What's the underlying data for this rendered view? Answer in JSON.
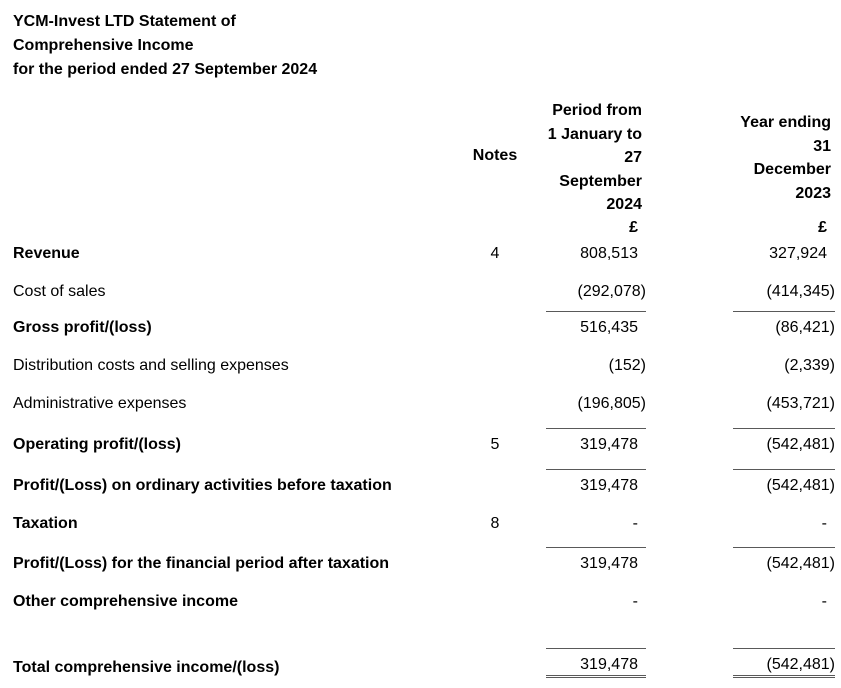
{
  "title": {
    "text": "YCM-Invest LTD Statement of\nComprehensive Income\nfor the period ended 27 September 2024"
  },
  "columns": {
    "notes": "Notes",
    "period_2024": "Period from\n1 January to\n27\nSeptember\n2024",
    "period_2023": "Year ending\n31\nDecember\n2023",
    "currency_2024": "£",
    "currency_2023": "£"
  },
  "colors": {
    "text": "#000000",
    "rule": "#595959",
    "background": "#ffffff"
  },
  "rows": [
    {
      "label": "Revenue",
      "note": "4",
      "v2024": "808,513",
      "v2023": "327,924",
      "bold": true,
      "rule_above": false,
      "double_rule_below": false
    },
    {
      "label": "Cost of sales",
      "note": "",
      "v2024": "(292,078)",
      "v2023": "(414,345)",
      "bold": false,
      "rule_above": false,
      "double_rule_below": false
    },
    {
      "label": "Gross profit/(loss)",
      "note": "",
      "v2024": "516,435",
      "v2023": "(86,421)",
      "bold": true,
      "rule_above": true,
      "double_rule_below": false
    },
    {
      "label": "Distribution costs and selling expenses",
      "note": "",
      "v2024": "(152)",
      "v2023": "(2,339)",
      "bold": false,
      "rule_above": false,
      "double_rule_below": false
    },
    {
      "label": "Administrative expenses",
      "note": "",
      "v2024": "(196,805)",
      "v2023": "(453,721)",
      "bold": false,
      "rule_above": false,
      "double_rule_below": false
    },
    {
      "label": "Operating profit/(loss)",
      "note": "5",
      "v2024": "319,478",
      "v2023": "(542,481)",
      "bold": true,
      "rule_above": true,
      "double_rule_below": false
    },
    {
      "label": "Profit/(Loss) on ordinary activities before taxation",
      "note": "",
      "v2024": "319,478",
      "v2023": "(542,481)",
      "bold": true,
      "rule_above": true,
      "double_rule_below": false
    },
    {
      "label": "Taxation",
      "note": "8",
      "v2024": "-",
      "v2023": "-",
      "bold": true,
      "rule_above": false,
      "double_rule_below": false
    },
    {
      "label": "Profit/(Loss) for the financial period after taxation",
      "note": "",
      "v2024": "319,478",
      "v2023": "(542,481)",
      "bold": true,
      "rule_above": true,
      "double_rule_below": false
    },
    {
      "label": "Other comprehensive income",
      "note": "",
      "v2024": "-",
      "v2023": "-",
      "bold": true,
      "rule_above": false,
      "double_rule_below": false
    },
    {
      "label": "Total comprehensive income/(loss)",
      "note": "",
      "v2024": "319,478",
      "v2023": "(542,481)",
      "bold": true,
      "rule_above": true,
      "double_rule_below": true
    }
  ]
}
